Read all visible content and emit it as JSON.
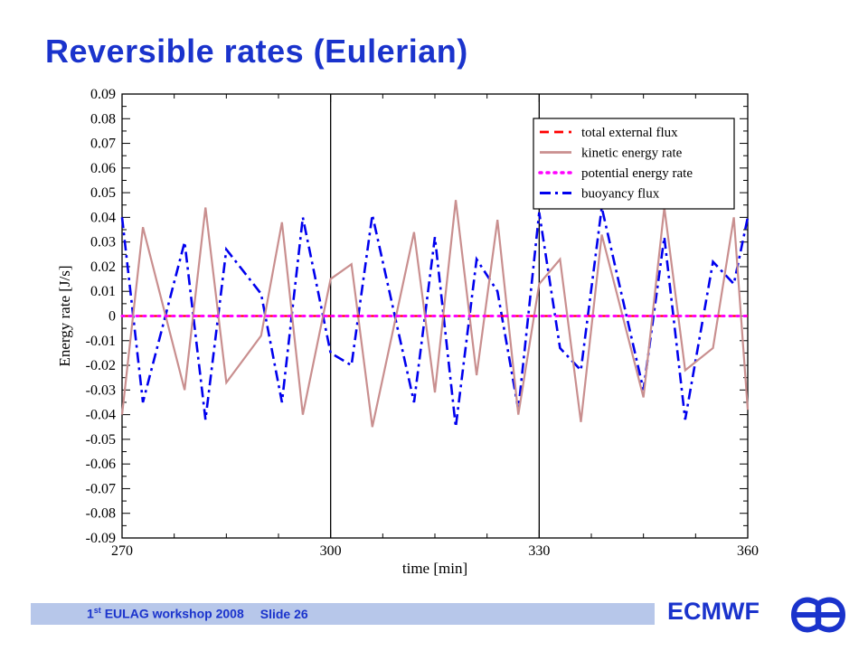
{
  "slide": {
    "title": "Reversible rates (Eulerian)",
    "footer_ordinal_num": "1",
    "footer_ordinal_sup": "st",
    "footer_event": " EULAG workshop 2008",
    "footer_slide": "Slide 26",
    "logo_text": "ECMWF"
  },
  "colors": {
    "title": "#1a33cc",
    "footer_bar": "#b7c7ea",
    "total_external_flux": "#ff0000",
    "kinetic_energy_rate": "#c98f8f",
    "potential_energy_rate": "#ff00ff",
    "buoyancy_flux": "#0000ee"
  },
  "chart_data": {
    "type": "line",
    "title": "",
    "xlabel": "time [min]",
    "ylabel": "Energy rate [J/s]",
    "xlim": [
      270,
      360
    ],
    "ylim": [
      -0.09,
      0.09
    ],
    "x_ticks": [
      270,
      300,
      330,
      360
    ],
    "y_ticks": [
      0.09,
      0.08,
      0.07,
      0.06,
      0.05,
      0.04,
      0.03,
      0.02,
      0.01,
      0,
      -0.01,
      -0.02,
      -0.03,
      -0.04,
      -0.05,
      -0.06,
      -0.07,
      -0.08,
      -0.09
    ],
    "y_tick_labels": [
      "0.09",
      "0.08",
      "0.07",
      "0.06",
      "0.05",
      "0.04",
      "0.03",
      "0.02",
      "0.01",
      "0",
      "-0.01",
      "-0.02",
      "-0.03",
      "-0.04",
      "-0.05",
      "-0.06",
      "-0.07",
      "-0.08",
      "-0.09"
    ],
    "vertical_lines": [
      300,
      330
    ],
    "legend_position": "top-right",
    "series": [
      {
        "name": "total external flux",
        "style": "dashed",
        "x": [
          270,
          360
        ],
        "y": [
          0,
          0
        ]
      },
      {
        "name": "kinetic energy rate",
        "style": "solid",
        "x": [
          270,
          273,
          279,
          282,
          285,
          290,
          293,
          296,
          300,
          303,
          306,
          312,
          315,
          318,
          321,
          324,
          327,
          330,
          333,
          336,
          339,
          345,
          348,
          351,
          355,
          358,
          360
        ],
        "y": [
          -0.04,
          0.036,
          -0.03,
          0.044,
          -0.027,
          -0.008,
          0.038,
          -0.04,
          0.015,
          0.021,
          -0.045,
          0.034,
          -0.031,
          0.047,
          -0.024,
          0.039,
          -0.04,
          0.013,
          0.023,
          -0.043,
          0.033,
          -0.033,
          0.044,
          -0.022,
          -0.013,
          0.04,
          -0.038
        ]
      },
      {
        "name": "potential energy rate",
        "style": "dotted",
        "x": [
          270,
          360
        ],
        "y": [
          0,
          0
        ]
      },
      {
        "name": "buoyancy flux",
        "style": "dashdot",
        "x": [
          270,
          273,
          279,
          282,
          285,
          290,
          293,
          296,
          300,
          303,
          306,
          312,
          315,
          318,
          321,
          324,
          327,
          330,
          333,
          336,
          339,
          345,
          348,
          351,
          355,
          358,
          360
        ],
        "y": [
          0.04,
          -0.035,
          0.03,
          -0.042,
          0.027,
          0.009,
          -0.035,
          0.04,
          -0.015,
          -0.02,
          0.041,
          -0.035,
          0.032,
          -0.045,
          0.023,
          0.01,
          -0.038,
          0.042,
          -0.013,
          -0.022,
          0.044,
          -0.03,
          0.032,
          -0.042,
          0.022,
          0.013,
          0.04
        ]
      }
    ]
  }
}
